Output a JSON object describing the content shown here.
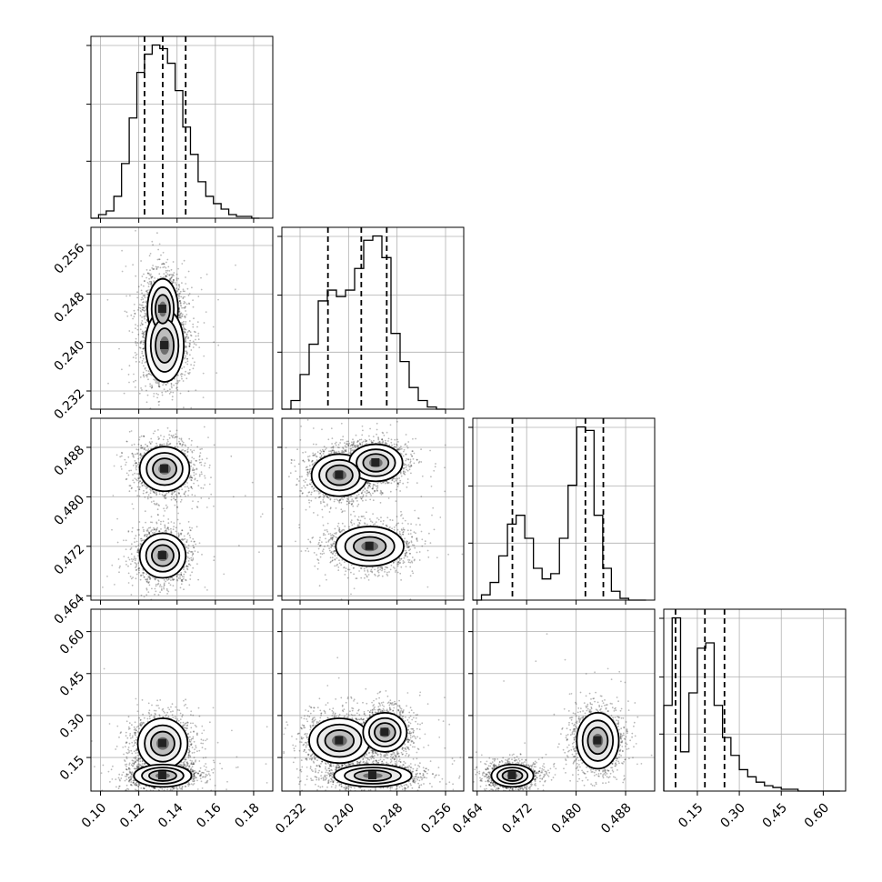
{
  "chart_data": {
    "type": "corner",
    "title": "",
    "parameters": 4,
    "grid": true,
    "quantile_lines": "dashed",
    "axes": [
      {
        "index": 0,
        "range": [
          0.095,
          0.19
        ],
        "ticks": [
          0.1,
          0.12,
          0.14,
          0.16,
          0.18
        ],
        "tick_labels": [
          "0.10",
          "0.12",
          "0.14",
          "0.16",
          "0.18"
        ],
        "quantiles": [
          0.123,
          0.1325,
          0.1445
        ]
      },
      {
        "index": 1,
        "range": [
          0.229,
          0.259
        ],
        "ticks": [
          0.232,
          0.24,
          0.248,
          0.256
        ],
        "tick_labels": [
          "0.232",
          "0.240",
          "0.248",
          "0.256"
        ],
        "quantiles": [
          0.2366,
          0.2421,
          0.2463
        ]
      },
      {
        "index": 2,
        "range": [
          0.4633,
          0.4927
        ],
        "ticks": [
          0.464,
          0.472,
          0.48,
          0.488
        ],
        "tick_labels": [
          "0.464",
          "0.472",
          "0.480",
          "0.488"
        ],
        "quantiles": [
          0.4697,
          0.4815,
          0.4844
        ]
      },
      {
        "index": 3,
        "range": [
          0.03,
          0.68
        ],
        "ticks": [
          0.15,
          0.3,
          0.45,
          0.6
        ],
        "tick_labels": [
          "0.15",
          "0.30",
          "0.45",
          "0.60"
        ],
        "quantiles": [
          0.072,
          0.177,
          0.247
        ]
      }
    ],
    "histograms": [
      {
        "param": 0,
        "edges": [
          0.095,
          0.099,
          0.103,
          0.107,
          0.111,
          0.115,
          0.119,
          0.123,
          0.127,
          0.131,
          0.135,
          0.139,
          0.143,
          0.147,
          0.151,
          0.155,
          0.159,
          0.163,
          0.167,
          0.171,
          0.175,
          0.179,
          0.183
        ],
        "counts": [
          0,
          2,
          4,
          12,
          30,
          55,
          80,
          90,
          95,
          93,
          85,
          70,
          50,
          35,
          20,
          12,
          8,
          5,
          2,
          1,
          1,
          0
        ]
      },
      {
        "param": 1,
        "edges": [
          0.229,
          0.2305,
          0.232,
          0.2335,
          0.235,
          0.2365,
          0.238,
          0.2395,
          0.241,
          0.2425,
          0.244,
          0.2455,
          0.247,
          0.2485,
          0.25,
          0.2515,
          0.253,
          0.2545,
          0.256
        ],
        "counts": [
          0,
          4,
          16,
          30,
          50,
          55,
          52,
          55,
          65,
          78,
          80,
          70,
          35,
          22,
          10,
          4,
          1,
          0
        ]
      },
      {
        "param": 2,
        "edges": [
          0.4633,
          0.4647,
          0.4661,
          0.4675,
          0.4689,
          0.4703,
          0.4717,
          0.4731,
          0.4745,
          0.4759,
          0.4773,
          0.4787,
          0.4801,
          0.4815,
          0.4829,
          0.4843,
          0.4857,
          0.4871,
          0.4885,
          0.4899,
          0.4913
        ],
        "counts": [
          0,
          3,
          10,
          25,
          43,
          48,
          35,
          18,
          12,
          15,
          35,
          65,
          98,
          96,
          48,
          18,
          5,
          1,
          0,
          0
        ]
      },
      {
        "param": 3,
        "edges": [
          0.03,
          0.06,
          0.09,
          0.12,
          0.15,
          0.18,
          0.21,
          0.24,
          0.27,
          0.3,
          0.33,
          0.36,
          0.39,
          0.42,
          0.45,
          0.48,
          0.51,
          0.54,
          0.57,
          0.6,
          0.63,
          0.66
        ],
        "counts": [
          48,
          97,
          22,
          55,
          80,
          83,
          48,
          30,
          20,
          12,
          8,
          5,
          3,
          2,
          1,
          1,
          0,
          0,
          0,
          0,
          0
        ]
      }
    ],
    "joint_modes": [
      {
        "x_param": 0,
        "y_param": 1,
        "modes": [
          {
            "x": 0.1325,
            "y": 0.2455,
            "sx": 0.004,
            "sy": 0.0025
          },
          {
            "x": 0.1335,
            "y": 0.2395,
            "sx": 0.005,
            "sy": 0.003
          }
        ]
      },
      {
        "x_param": 0,
        "y_param": 2,
        "modes": [
          {
            "x": 0.1335,
            "y": 0.4845,
            "sx": 0.0065,
            "sy": 0.0018
          },
          {
            "x": 0.1325,
            "y": 0.4705,
            "sx": 0.006,
            "sy": 0.0018
          }
        ]
      },
      {
        "x_param": 0,
        "y_param": 3,
        "modes": [
          {
            "x": 0.1325,
            "y": 0.2,
            "sx": 0.0065,
            "sy": 0.045
          },
          {
            "x": 0.1325,
            "y": 0.085,
            "sx": 0.0075,
            "sy": 0.02
          }
        ]
      },
      {
        "x_param": 1,
        "y_param": 2,
        "modes": [
          {
            "x": 0.2385,
            "y": 0.4835,
            "sx": 0.0023,
            "sy": 0.0017
          },
          {
            "x": 0.2445,
            "y": 0.4855,
            "sx": 0.0022,
            "sy": 0.0015
          },
          {
            "x": 0.2435,
            "y": 0.472,
            "sx": 0.0028,
            "sy": 0.0016
          }
        ]
      },
      {
        "x_param": 1,
        "y_param": 3,
        "modes": [
          {
            "x": 0.2385,
            "y": 0.21,
            "sx": 0.0025,
            "sy": 0.04
          },
          {
            "x": 0.246,
            "y": 0.24,
            "sx": 0.0018,
            "sy": 0.035
          },
          {
            "x": 0.244,
            "y": 0.085,
            "sx": 0.0032,
            "sy": 0.02
          }
        ]
      },
      {
        "x_param": 2,
        "y_param": 3,
        "modes": [
          {
            "x": 0.4835,
            "y": 0.21,
            "sx": 0.0017,
            "sy": 0.05
          },
          {
            "x": 0.4697,
            "y": 0.085,
            "sx": 0.0017,
            "sy": 0.02
          }
        ]
      }
    ]
  }
}
